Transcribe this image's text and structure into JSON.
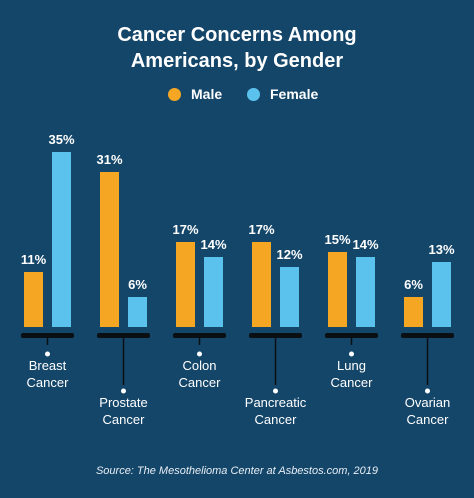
{
  "chart_data": {
    "type": "bar",
    "title_line1": "Cancer Concerns Among",
    "title_line2": "Americans, by Gender",
    "categories": [
      [
        "Breast",
        "Cancer"
      ],
      [
        "Prostate",
        "Cancer"
      ],
      [
        "Colon",
        "Cancer"
      ],
      [
        "Pancreatic",
        "Cancer"
      ],
      [
        "Lung",
        "Cancer"
      ],
      [
        "Ovarian",
        "Cancer"
      ]
    ],
    "series": [
      {
        "name": "Male",
        "color": "#f5a623",
        "values": [
          11,
          31,
          17,
          17,
          15,
          6
        ]
      },
      {
        "name": "Female",
        "color": "#5bc2ee",
        "values": [
          35,
          6,
          14,
          12,
          14,
          13
        ]
      }
    ],
    "value_suffix": "%",
    "legend_position": "top-center",
    "grid": false,
    "source": "Source: The Mesothelioma Center at Asbestos.com, 2019"
  }
}
